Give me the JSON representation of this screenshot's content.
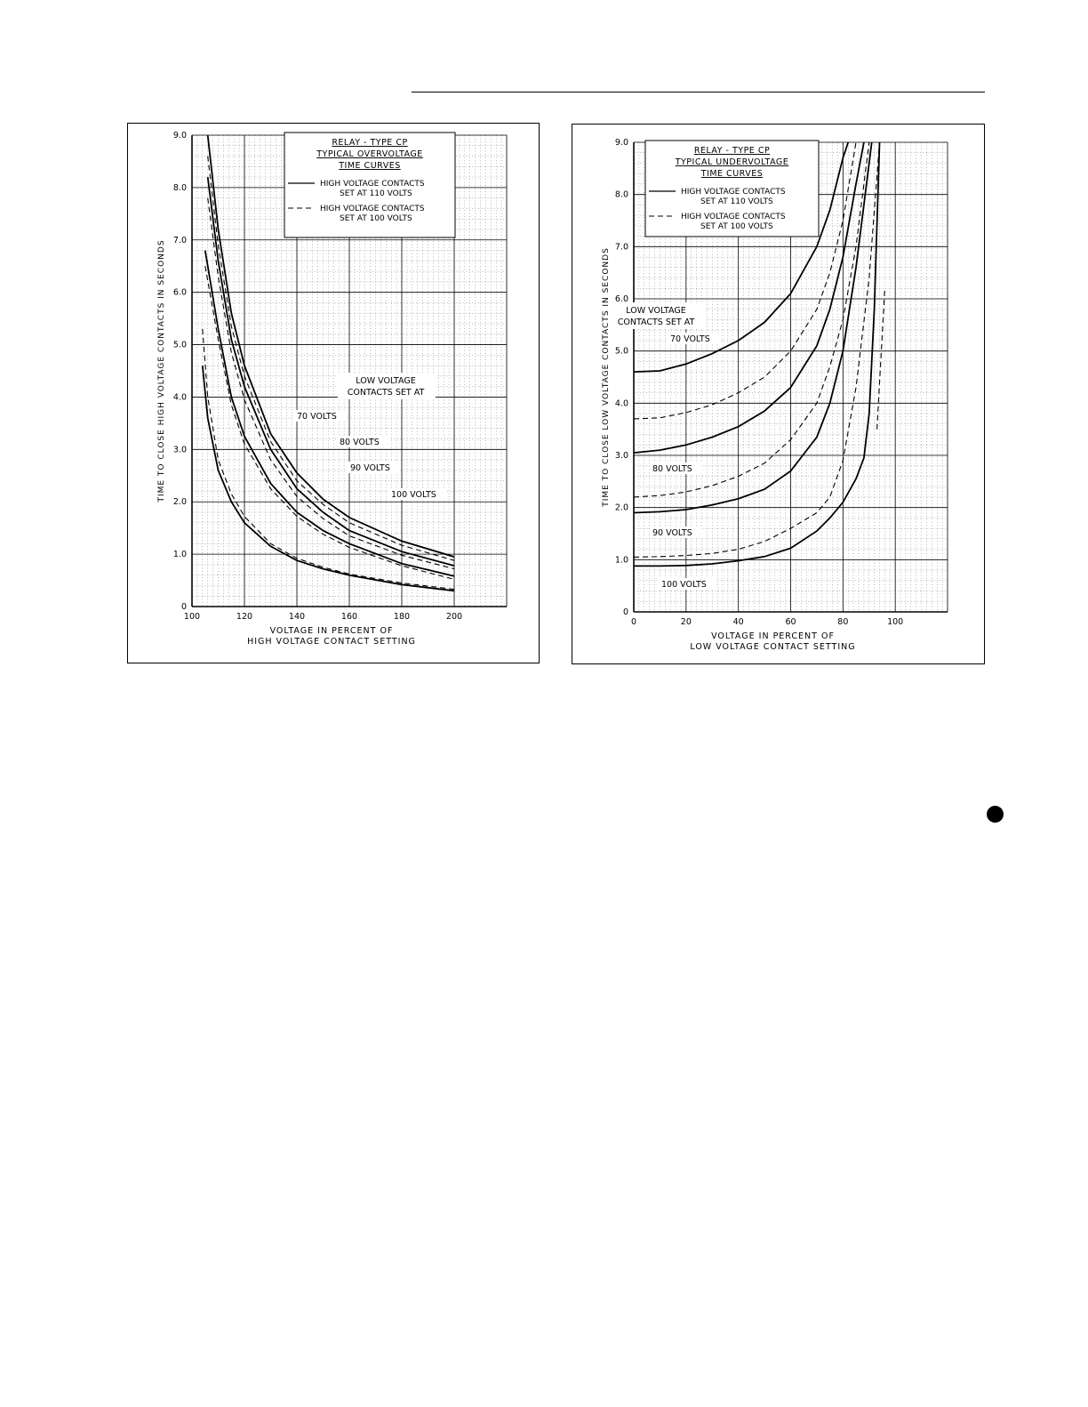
{
  "chart_data": [
    {
      "id": "overvoltage",
      "type": "line",
      "title_lines": [
        "RELAY - TYPE CP",
        "TYPICAL OVERVOLTAGE",
        "TIME CURVES"
      ],
      "legend": {
        "solid": [
          "HIGH VOLTAGE CONTACTS",
          "SET AT 110 VOLTS"
        ],
        "dashed": [
          "HIGH VOLTAGE CONTACTS",
          "SET AT 100 VOLTS"
        ]
      },
      "group_label": [
        "LOW VOLTAGE",
        "CONTACTS SET AT"
      ],
      "ylabel": "TIME TO CLOSE HIGH VOLTAGE CONTACTS IN SECONDS",
      "xlabel": [
        "VOLTAGE IN PERCENT OF",
        "HIGH VOLTAGE CONTACT SETTING"
      ],
      "xlim": [
        100,
        220
      ],
      "ylim": [
        0,
        9
      ],
      "xticks": [
        100,
        120,
        140,
        160,
        180,
        200
      ],
      "xtick_labels": [
        "100",
        "120",
        "140",
        "160",
        "180",
        "200"
      ],
      "yticks": [
        0,
        1,
        2,
        3,
        4,
        5,
        6,
        7,
        8,
        9
      ],
      "ytick_labels": [
        "0",
        "1.0",
        "2.0",
        "3.0",
        "4.0",
        "5.0",
        "6.0",
        "7.0",
        "8.0",
        "9.0"
      ],
      "grid": true,
      "series": [
        {
          "name": "70 VOLTS",
          "style": "solid",
          "x": [
            106,
            110,
            115,
            120,
            130,
            140,
            150,
            160,
            180,
            200
          ],
          "y": [
            9.0,
            7.2,
            5.6,
            4.6,
            3.3,
            2.55,
            2.05,
            1.7,
            1.25,
            0.95
          ]
        },
        {
          "name": "70 VOLTS",
          "style": "dashed",
          "x": [
            106,
            110,
            115,
            120,
            130,
            140,
            150,
            160,
            180,
            200
          ],
          "y": [
            8.6,
            6.9,
            5.35,
            4.4,
            3.15,
            2.4,
            1.95,
            1.6,
            1.17,
            0.88
          ]
        },
        {
          "name": "80 VOLTS",
          "style": "solid",
          "x": [
            106,
            110,
            115,
            120,
            130,
            140,
            150,
            160,
            180,
            200
          ],
          "y": [
            8.2,
            6.6,
            5.1,
            4.2,
            3.0,
            2.25,
            1.8,
            1.45,
            1.05,
            0.78
          ]
        },
        {
          "name": "80 VOLTS",
          "style": "dashed",
          "x": [
            106,
            110,
            115,
            120,
            130,
            140,
            150,
            160,
            180,
            200
          ],
          "y": [
            7.8,
            6.3,
            4.85,
            3.95,
            2.8,
            2.1,
            1.68,
            1.35,
            0.98,
            0.72
          ]
        },
        {
          "name": "90 VOLTS",
          "style": "solid",
          "x": [
            105,
            110,
            115,
            120,
            130,
            140,
            150,
            160,
            180,
            200
          ],
          "y": [
            6.8,
            5.3,
            4.0,
            3.25,
            2.35,
            1.8,
            1.45,
            1.2,
            0.82,
            0.58
          ]
        },
        {
          "name": "90 VOLTS",
          "style": "dashed",
          "x": [
            105,
            110,
            115,
            120,
            130,
            140,
            150,
            160,
            180,
            200
          ],
          "y": [
            6.5,
            5.1,
            3.85,
            3.1,
            2.25,
            1.72,
            1.38,
            1.13,
            0.78,
            0.52
          ]
        },
        {
          "name": "100 VOLTS",
          "style": "solid",
          "x": [
            104,
            106,
            110,
            115,
            120,
            130,
            140,
            150,
            160,
            180,
            200
          ],
          "y": [
            4.6,
            3.6,
            2.6,
            2.0,
            1.6,
            1.15,
            0.88,
            0.72,
            0.6,
            0.42,
            0.3
          ]
        },
        {
          "name": "100 VOLTS",
          "style": "dashed",
          "x": [
            104,
            106,
            110,
            115,
            120,
            130,
            140,
            150,
            160,
            180,
            200
          ],
          "y": [
            5.3,
            4.0,
            2.8,
            2.15,
            1.72,
            1.2,
            0.92,
            0.75,
            0.62,
            0.45,
            0.33
          ]
        }
      ],
      "series_labels": [
        "70 VOLTS",
        "80 VOLTS",
        "90 VOLTS",
        "100 VOLTS"
      ]
    },
    {
      "id": "undervoltage",
      "type": "line",
      "title_lines": [
        "RELAY - TYPE CP",
        "TYPICAL UNDERVOLTAGE",
        "TIME CURVES"
      ],
      "legend": {
        "solid": [
          "HIGH VOLTAGE CONTACTS",
          "SET AT 110 VOLTS"
        ],
        "dashed": [
          "HIGH VOLTAGE CONTACTS",
          "SET AT 100 VOLTS"
        ]
      },
      "group_label": [
        "LOW VOLTAGE",
        "CONTACTS SET AT"
      ],
      "ylabel": "TIME TO CLOSE LOW VOLTAGE CONTACTS IN SECONDS",
      "xlabel": [
        "VOLTAGE IN PERCENT OF",
        "LOW VOLTAGE CONTACT SETTING"
      ],
      "xlim": [
        0,
        120
      ],
      "ylim": [
        0,
        9
      ],
      "xticks": [
        0,
        20,
        40,
        60,
        80,
        100
      ],
      "xtick_labels": [
        "0",
        "20",
        "40",
        "60",
        "80",
        "100"
      ],
      "yticks": [
        0,
        1,
        2,
        3,
        4,
        5,
        6,
        7,
        8,
        9
      ],
      "ytick_labels": [
        "0",
        "1.0",
        "2.0",
        "3.0",
        "4.0",
        "5.0",
        "6.0",
        "7.0",
        "8.0",
        "9.0"
      ],
      "grid": true,
      "series": [
        {
          "name": "70 VOLTS",
          "style": "solid",
          "x": [
            0,
            10,
            20,
            30,
            40,
            50,
            60,
            70,
            75,
            80,
            82
          ],
          "y": [
            4.6,
            4.62,
            4.75,
            4.95,
            5.2,
            5.55,
            6.1,
            7.0,
            7.7,
            8.7,
            9.0
          ]
        },
        {
          "name": "70 VOLTS",
          "style": "dashed",
          "x": [
            0,
            10,
            20,
            30,
            40,
            50,
            60,
            70,
            75,
            80,
            85
          ],
          "y": [
            3.7,
            3.72,
            3.82,
            3.97,
            4.2,
            4.5,
            5.0,
            5.8,
            6.5,
            7.5,
            9.0
          ]
        },
        {
          "name": "80 VOLTS",
          "style": "solid",
          "x": [
            0,
            10,
            20,
            30,
            40,
            50,
            60,
            70,
            75,
            80,
            85,
            88
          ],
          "y": [
            3.05,
            3.1,
            3.2,
            3.35,
            3.55,
            3.85,
            4.3,
            5.1,
            5.8,
            6.8,
            8.2,
            9.0
          ]
        },
        {
          "name": "80 VOLTS",
          "style": "dashed",
          "x": [
            0,
            10,
            20,
            30,
            40,
            50,
            60,
            70,
            75,
            80,
            85,
            90
          ],
          "y": [
            2.2,
            2.23,
            2.3,
            2.42,
            2.6,
            2.85,
            3.3,
            4.0,
            4.7,
            5.6,
            7.0,
            9.0
          ]
        },
        {
          "name": "90 VOLTS",
          "style": "solid",
          "x": [
            0,
            10,
            20,
            30,
            40,
            50,
            60,
            70,
            75,
            80,
            85,
            88,
            91
          ],
          "y": [
            1.9,
            1.92,
            1.96,
            2.05,
            2.17,
            2.35,
            2.7,
            3.35,
            4.0,
            5.0,
            6.6,
            7.8,
            9.0
          ]
        },
        {
          "name": "90 VOLTS",
          "style": "dashed",
          "x": [
            0,
            10,
            20,
            30,
            40,
            50,
            60,
            70,
            75,
            80,
            85,
            90,
            94
          ],
          "y": [
            1.05,
            1.06,
            1.08,
            1.12,
            1.2,
            1.35,
            1.6,
            1.9,
            2.2,
            2.9,
            4.3,
            6.4,
            9.0
          ]
        },
        {
          "name": "100 VOLTS",
          "style": "solid",
          "x": [
            0,
            10,
            20,
            30,
            40,
            50,
            60,
            70,
            75,
            80,
            85,
            88,
            90,
            92,
            94
          ],
          "y": [
            0.88,
            0.88,
            0.89,
            0.92,
            0.98,
            1.06,
            1.22,
            1.55,
            1.8,
            2.1,
            2.55,
            2.95,
            3.8,
            5.8,
            9.0
          ]
        },
        {
          "name": "100 VOLTS",
          "style": "dashed",
          "x": [
            93,
            94,
            95,
            96
          ],
          "y": [
            3.5,
            4.4,
            5.3,
            6.2
          ]
        }
      ],
      "series_labels": [
        "70 VOLTS",
        "80 VOLTS",
        "90 VOLTS",
        "100 VOLTS"
      ]
    }
  ]
}
